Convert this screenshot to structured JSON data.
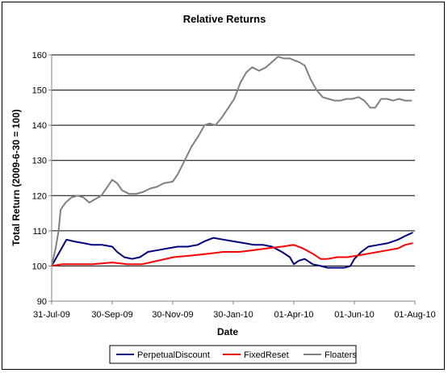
{
  "chart_data": {
    "type": "line",
    "title": "Relative Returns",
    "xlabel": "Date",
    "ylabel": "Total Return (2009-6-30 = 100)",
    "xlim": [
      "2009-07-31",
      "2010-08-01"
    ],
    "ylim": [
      90,
      160
    ],
    "yticks": [
      90,
      100,
      110,
      120,
      130,
      140,
      150,
      160
    ],
    "xticks": [
      {
        "date": "2009-07-31",
        "label": "31-Jul-09"
      },
      {
        "date": "2009-09-30",
        "label": "30-Sep-09"
      },
      {
        "date": "2009-11-30",
        "label": "30-Nov-09"
      },
      {
        "date": "2010-01-30",
        "label": "30-Jan-10"
      },
      {
        "date": "2010-04-01",
        "label": "01-Apr-10"
      },
      {
        "date": "2010-06-01",
        "label": "01-Jun-10"
      },
      {
        "date": "2010-08-01",
        "label": "01-Aug-10"
      }
    ],
    "grid": "horizontal",
    "legend": "bottom",
    "series": [
      {
        "name": "PerpetualDiscount",
        "color": "#000080",
        "points": [
          [
            "2009-07-31",
            100.0
          ],
          [
            "2009-08-05",
            102.5
          ],
          [
            "2009-08-10",
            105.0
          ],
          [
            "2009-08-15",
            107.5
          ],
          [
            "2009-08-22",
            107.0
          ],
          [
            "2009-09-01",
            106.5
          ],
          [
            "2009-09-10",
            106.0
          ],
          [
            "2009-09-20",
            106.0
          ],
          [
            "2009-09-30",
            105.5
          ],
          [
            "2009-10-05",
            104.0
          ],
          [
            "2009-10-12",
            102.5
          ],
          [
            "2009-10-20",
            102.0
          ],
          [
            "2009-10-28",
            102.5
          ],
          [
            "2009-11-05",
            104.0
          ],
          [
            "2009-11-15",
            104.5
          ],
          [
            "2009-11-25",
            105.0
          ],
          [
            "2009-12-05",
            105.5
          ],
          [
            "2009-12-15",
            105.5
          ],
          [
            "2009-12-25",
            106.0
          ],
          [
            "2010-01-01",
            107.0
          ],
          [
            "2010-01-10",
            108.0
          ],
          [
            "2010-01-20",
            107.5
          ],
          [
            "2010-01-30",
            107.0
          ],
          [
            "2010-02-10",
            106.5
          ],
          [
            "2010-02-20",
            106.0
          ],
          [
            "2010-03-01",
            106.0
          ],
          [
            "2010-03-10",
            105.5
          ],
          [
            "2010-03-20",
            104.0
          ],
          [
            "2010-03-28",
            102.5
          ],
          [
            "2010-04-01",
            100.5
          ],
          [
            "2010-04-06",
            101.5
          ],
          [
            "2010-04-12",
            102.0
          ],
          [
            "2010-04-20",
            100.5
          ],
          [
            "2010-04-28",
            100.0
          ],
          [
            "2010-05-05",
            99.5
          ],
          [
            "2010-05-15",
            99.5
          ],
          [
            "2010-05-22",
            99.5
          ],
          [
            "2010-05-28",
            100.0
          ],
          [
            "2010-06-01",
            102.0
          ],
          [
            "2010-06-08",
            104.0
          ],
          [
            "2010-06-15",
            105.5
          ],
          [
            "2010-06-25",
            106.0
          ],
          [
            "2010-07-05",
            106.5
          ],
          [
            "2010-07-15",
            107.5
          ],
          [
            "2010-07-22",
            108.5
          ],
          [
            "2010-07-30",
            109.5
          ]
        ]
      },
      {
        "name": "FixedReset",
        "color": "#ff0000",
        "points": [
          [
            "2009-07-31",
            100.0
          ],
          [
            "2009-08-10",
            100.5
          ],
          [
            "2009-08-25",
            100.5
          ],
          [
            "2009-09-10",
            100.5
          ],
          [
            "2009-09-30",
            101.0
          ],
          [
            "2009-10-15",
            100.5
          ],
          [
            "2009-10-30",
            100.5
          ],
          [
            "2009-11-15",
            101.5
          ],
          [
            "2009-12-01",
            102.5
          ],
          [
            "2009-12-20",
            103.0
          ],
          [
            "2010-01-05",
            103.5
          ],
          [
            "2010-01-20",
            104.0
          ],
          [
            "2010-02-05",
            104.0
          ],
          [
            "2010-02-20",
            104.5
          ],
          [
            "2010-03-05",
            105.0
          ],
          [
            "2010-03-20",
            105.5
          ],
          [
            "2010-04-01",
            106.0
          ],
          [
            "2010-04-10",
            105.0
          ],
          [
            "2010-04-20",
            103.5
          ],
          [
            "2010-04-28",
            102.0
          ],
          [
            "2010-05-05",
            102.0
          ],
          [
            "2010-05-15",
            102.5
          ],
          [
            "2010-05-25",
            102.5
          ],
          [
            "2010-06-05",
            103.0
          ],
          [
            "2010-06-15",
            103.5
          ],
          [
            "2010-06-25",
            104.0
          ],
          [
            "2010-07-05",
            104.5
          ],
          [
            "2010-07-15",
            105.0
          ],
          [
            "2010-07-22",
            106.0
          ],
          [
            "2010-07-30",
            106.5
          ]
        ]
      },
      {
        "name": "Floaters",
        "color": "#808080",
        "points": [
          [
            "2009-07-31",
            100.0
          ],
          [
            "2009-08-04",
            105.0
          ],
          [
            "2009-08-07",
            110.0
          ],
          [
            "2009-08-09",
            116.0
          ],
          [
            "2009-08-14",
            118.0
          ],
          [
            "2009-08-20",
            119.5
          ],
          [
            "2009-08-26",
            120.0
          ],
          [
            "2009-09-01",
            119.5
          ],
          [
            "2009-09-07",
            118.0
          ],
          [
            "2009-09-13",
            119.0
          ],
          [
            "2009-09-19",
            120.0
          ],
          [
            "2009-09-24",
            122.0
          ],
          [
            "2009-09-30",
            124.5
          ],
          [
            "2009-10-05",
            123.5
          ],
          [
            "2009-10-10",
            121.5
          ],
          [
            "2009-10-17",
            120.5
          ],
          [
            "2009-10-24",
            120.5
          ],
          [
            "2009-10-31",
            121.0
          ],
          [
            "2009-11-07",
            122.0
          ],
          [
            "2009-11-14",
            122.5
          ],
          [
            "2009-11-21",
            123.5
          ],
          [
            "2009-11-30",
            124.0
          ],
          [
            "2009-12-05",
            126.0
          ],
          [
            "2009-12-12",
            130.0
          ],
          [
            "2009-12-19",
            134.0
          ],
          [
            "2009-12-26",
            137.0
          ],
          [
            "2010-01-01",
            140.0
          ],
          [
            "2010-01-06",
            140.5
          ],
          [
            "2010-01-12",
            140.0
          ],
          [
            "2010-01-18",
            142.0
          ],
          [
            "2010-01-25",
            145.0
          ],
          [
            "2010-01-31",
            147.5
          ],
          [
            "2010-02-06",
            152.0
          ],
          [
            "2010-02-12",
            155.0
          ],
          [
            "2010-02-18",
            156.5
          ],
          [
            "2010-02-25",
            155.5
          ],
          [
            "2010-03-04",
            156.5
          ],
          [
            "2010-03-10",
            158.0
          ],
          [
            "2010-03-16",
            159.5
          ],
          [
            "2010-03-22",
            159.0
          ],
          [
            "2010-03-28",
            159.0
          ],
          [
            "2010-04-01",
            158.5
          ],
          [
            "2010-04-06",
            158.0
          ],
          [
            "2010-04-12",
            157.0
          ],
          [
            "2010-04-18",
            153.0
          ],
          [
            "2010-04-24",
            150.0
          ],
          [
            "2010-04-30",
            148.0
          ],
          [
            "2010-05-06",
            147.5
          ],
          [
            "2010-05-12",
            147.0
          ],
          [
            "2010-05-18",
            147.0
          ],
          [
            "2010-05-24",
            147.5
          ],
          [
            "2010-05-30",
            147.5
          ],
          [
            "2010-06-05",
            148.0
          ],
          [
            "2010-06-11",
            147.0
          ],
          [
            "2010-06-17",
            145.0
          ],
          [
            "2010-06-22",
            145.0
          ],
          [
            "2010-06-28",
            147.5
          ],
          [
            "2010-07-04",
            147.5
          ],
          [
            "2010-07-10",
            147.0
          ],
          [
            "2010-07-16",
            147.5
          ],
          [
            "2010-07-22",
            147.0
          ],
          [
            "2010-07-29",
            147.0
          ]
        ]
      }
    ]
  }
}
